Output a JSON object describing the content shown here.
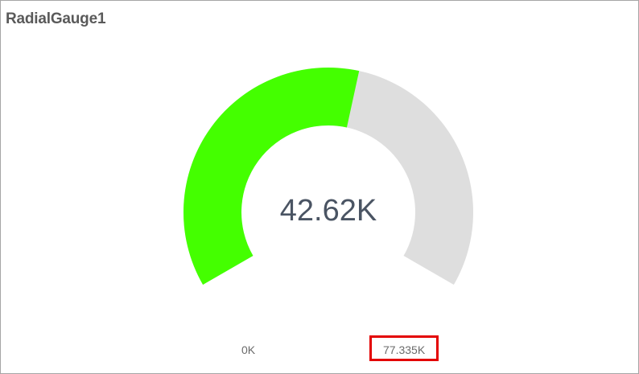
{
  "widget": {
    "title": "RadialGauge1"
  },
  "gauge": {
    "value": 42620,
    "value_label": "42.62K",
    "min": 0,
    "max": 77335,
    "min_label": "0K",
    "max_label": "77.335K",
    "fill_color": "#44ff00",
    "track_color": "#dedede",
    "highlighted": "max-label",
    "highlight_color": "#e30000"
  }
}
